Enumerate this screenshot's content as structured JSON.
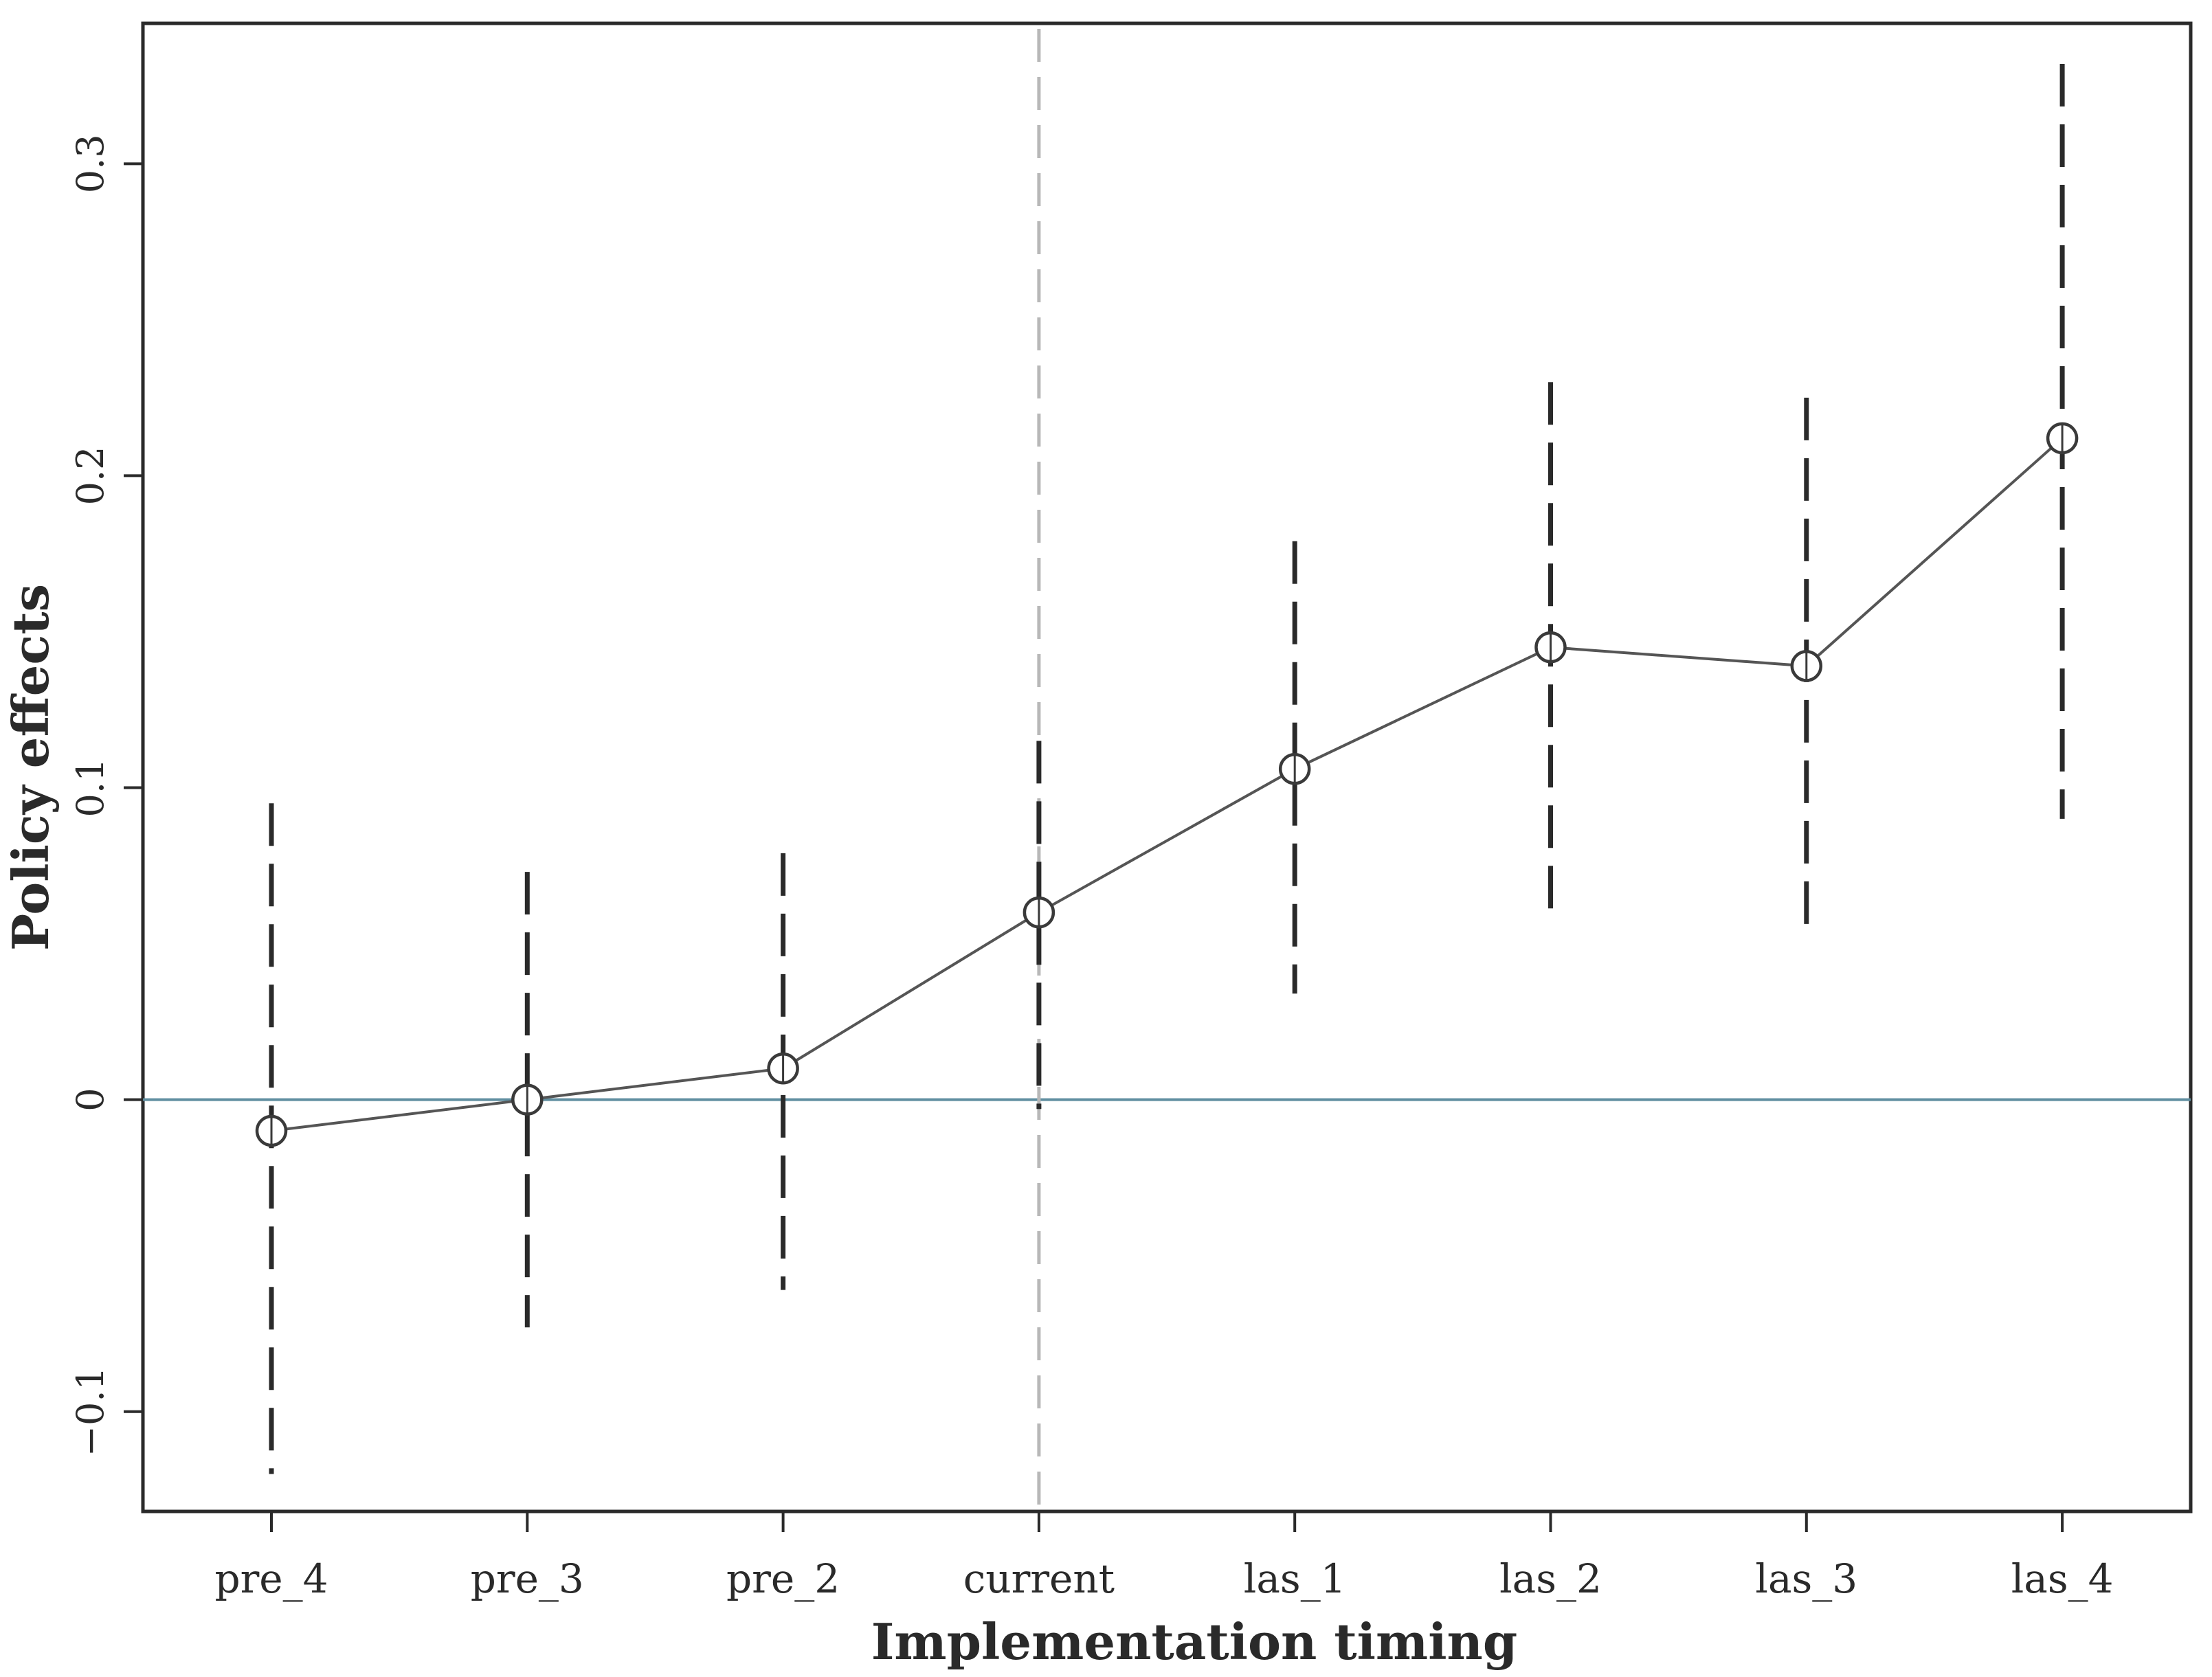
{
  "chart_data": {
    "type": "line",
    "title": "",
    "xlabel": "Implementation timing",
    "ylabel": "Policy effects",
    "categories": [
      "pre_4",
      "pre_3",
      "pre_2",
      "current",
      "las_1",
      "las_2",
      "las_3",
      "las_4"
    ],
    "series": [
      {
        "values": [
          -0.01,
          0.0,
          0.01,
          0.06,
          0.106,
          0.145,
          0.139,
          0.212
        ],
        "ci_lower": [
          -0.12,
          -0.073,
          -0.061,
          -0.003,
          0.034,
          0.06,
          0.053,
          0.09
        ],
        "ci_upper": [
          0.095,
          0.073,
          0.079,
          0.115,
          0.179,
          0.23,
          0.225,
          0.332
        ]
      }
    ],
    "yticks": [
      -0.1,
      0,
      0.1,
      0.2,
      0.3
    ],
    "ytick_labels": [
      "−0.1",
      "0",
      "0.1",
      "0.2",
      "0.3"
    ],
    "ylim": [
      -0.132,
      0.345
    ],
    "reference_lines": {
      "horizontal_y": 0,
      "vertical_at_category": "current"
    },
    "grid": false,
    "legend": "none",
    "colors": {
      "series_line": "#555555",
      "ci_line": "#2a2a2a",
      "zero_line": "#5f8ea0",
      "vertical_line": "#b8b8b8",
      "frame": "#2a2a2a"
    }
  }
}
